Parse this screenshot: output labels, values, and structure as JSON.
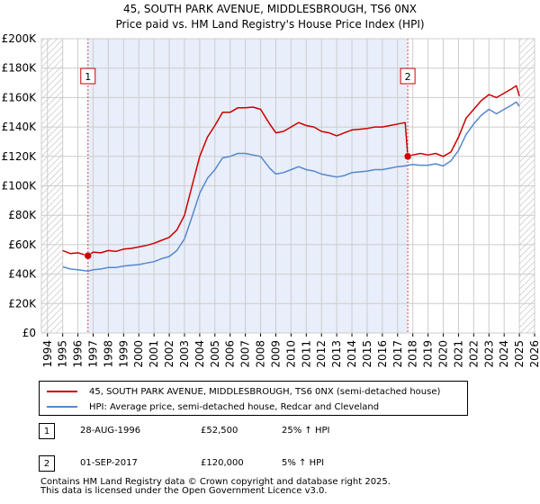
{
  "chart_data": {
    "type": "line",
    "title": "45, SOUTH PARK AVENUE, MIDDLESBROUGH, TS6 0NX",
    "subtitle": "Price paid vs. HM Land Registry's House Price Index (HPI)",
    "xlabel": "",
    "ylabel": "",
    "xlim": [
      1993.6,
      2026.0
    ],
    "ylim": [
      0,
      200000
    ],
    "x_ticks": [
      1994,
      1995,
      1996,
      1997,
      1998,
      1999,
      2000,
      2001,
      2002,
      2003,
      2004,
      2005,
      2006,
      2007,
      2008,
      2009,
      2010,
      2011,
      2012,
      2013,
      2014,
      2015,
      2016,
      2017,
      2018,
      2019,
      2020,
      2021,
      2022,
      2023,
      2024,
      2025,
      2026
    ],
    "y_ticks": [
      {
        "value": 0,
        "label": "£0"
      },
      {
        "value": 20000,
        "label": "£20K"
      },
      {
        "value": 40000,
        "label": "£40K"
      },
      {
        "value": 60000,
        "label": "£60K"
      },
      {
        "value": 80000,
        "label": "£80K"
      },
      {
        "value": 100000,
        "label": "£100K"
      },
      {
        "value": 120000,
        "label": "£120K"
      },
      {
        "value": 140000,
        "label": "£140K"
      },
      {
        "value": 160000,
        "label": "£160K"
      },
      {
        "value": 180000,
        "label": "£180K"
      },
      {
        "value": 200000,
        "label": "£200K"
      }
    ],
    "hatched_before": 1995.0,
    "hatched_after": 2025.0,
    "shaded_span": [
      1996.66,
      2017.67
    ],
    "series": [
      {
        "name": "45, SOUTH PARK AVENUE, MIDDLESBROUGH, TS6 0NX (semi-detached house)",
        "color": "#cc0000",
        "x": [
          1995.0,
          1995.5,
          1996.0,
          1996.66,
          1997.0,
          1997.5,
          1998.0,
          1998.5,
          1999.0,
          1999.5,
          2000.0,
          2000.5,
          2001.0,
          2001.5,
          2002.0,
          2002.5,
          2003.0,
          2003.5,
          2004.0,
          2004.5,
          2005.0,
          2005.5,
          2006.0,
          2006.5,
          2007.0,
          2007.5,
          2008.0,
          2008.3,
          2008.6,
          2009.0,
          2009.5,
          2010.0,
          2010.5,
          2011.0,
          2011.5,
          2012.0,
          2012.5,
          2013.0,
          2013.5,
          2014.0,
          2014.5,
          2015.0,
          2015.5,
          2016.0,
          2016.5,
          2017.0,
          2017.5,
          2017.67,
          2018.0,
          2018.5,
          2019.0,
          2019.5,
          2020.0,
          2020.5,
          2021.0,
          2021.5,
          2022.0,
          2022.5,
          2023.0,
          2023.5,
          2024.0,
          2024.5,
          2024.8,
          2025.0
        ],
        "values": [
          56000,
          54000,
          54500,
          52500,
          55000,
          54500,
          56000,
          55500,
          57000,
          57500,
          58500,
          59500,
          61000,
          63000,
          65000,
          70000,
          80000,
          100000,
          120000,
          133000,
          141000,
          150000,
          150000,
          153000,
          153000,
          153500,
          152000,
          147000,
          142000,
          136000,
          137000,
          140000,
          143000,
          141000,
          140000,
          137000,
          136000,
          134000,
          136000,
          138000,
          138500,
          139000,
          140000,
          140000,
          141000,
          142000,
          143000,
          120000,
          121000,
          122000,
          121000,
          122000,
          120000,
          123000,
          133000,
          146000,
          152000,
          158000,
          162000,
          160000,
          163000,
          166000,
          168000,
          161000
        ]
      },
      {
        "name": "HPI: Average price, semi-detached house, Redcar and Cleveland",
        "color": "#5588cc",
        "x": [
          1995.0,
          1995.5,
          1996.0,
          1996.66,
          1997.0,
          1997.5,
          1998.0,
          1998.5,
          1999.0,
          1999.5,
          2000.0,
          2000.5,
          2001.0,
          2001.5,
          2002.0,
          2002.5,
          2003.0,
          2003.5,
          2004.0,
          2004.5,
          2005.0,
          2005.5,
          2006.0,
          2006.5,
          2007.0,
          2007.5,
          2008.0,
          2008.3,
          2008.6,
          2009.0,
          2009.5,
          2010.0,
          2010.5,
          2011.0,
          2011.5,
          2012.0,
          2012.5,
          2013.0,
          2013.5,
          2014.0,
          2014.5,
          2015.0,
          2015.5,
          2016.0,
          2016.5,
          2017.0,
          2017.5,
          2017.67,
          2018.0,
          2018.5,
          2019.0,
          2019.5,
          2020.0,
          2020.5,
          2021.0,
          2021.5,
          2022.0,
          2022.5,
          2023.0,
          2023.5,
          2024.0,
          2024.5,
          2024.8,
          2025.0
        ],
        "values": [
          45000,
          43500,
          43000,
          42000,
          43000,
          43500,
          44500,
          44500,
          45500,
          46000,
          46500,
          47500,
          48500,
          50500,
          52000,
          56000,
          64000,
          79000,
          95000,
          105000,
          111000,
          119000,
          120000,
          122000,
          122000,
          121000,
          120000,
          116000,
          112000,
          108000,
          109000,
          111000,
          113000,
          111000,
          110000,
          108000,
          107000,
          106000,
          107000,
          109000,
          109500,
          110000,
          111000,
          111000,
          112000,
          113000,
          113500,
          114000,
          114500,
          114000,
          114000,
          115000,
          113500,
          117000,
          124000,
          135000,
          142000,
          148000,
          152000,
          149000,
          152000,
          155000,
          157000,
          154000
        ]
      }
    ],
    "markers": [
      {
        "label": "1",
        "x": 1996.66,
        "y": 52500
      },
      {
        "label": "2",
        "x": 2017.67,
        "y": 120000
      }
    ]
  },
  "legend": {
    "items": [
      {
        "label": "45, SOUTH PARK AVENUE, MIDDLESBROUGH, TS6 0NX (semi-detached house)",
        "color": "#cc0000"
      },
      {
        "label": "HPI: Average price, semi-detached house, Redcar and Cleveland",
        "color": "#5588cc"
      }
    ]
  },
  "sales": [
    {
      "num": "1",
      "date": "28-AUG-1996",
      "price": "£52,500",
      "hpi": "25% ↑ HPI"
    },
    {
      "num": "2",
      "date": "01-SEP-2017",
      "price": "£120,000",
      "hpi": "5% ↑ HPI"
    }
  ],
  "footer": {
    "line1": "Contains HM Land Registry data © Crown copyright and database right 2025.",
    "line2": "This data is licensed under the Open Government Licence v3.0."
  }
}
